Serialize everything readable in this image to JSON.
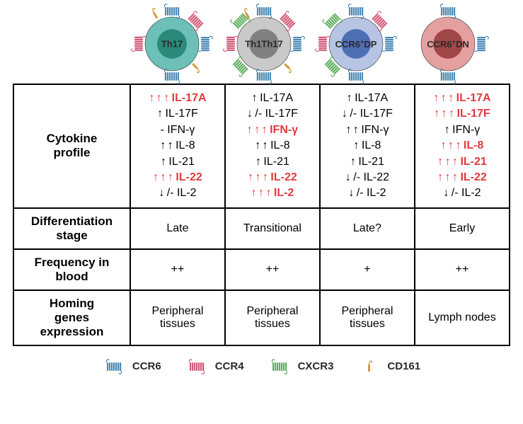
{
  "colors": {
    "ccr6": "#4a88b5",
    "ccr4": "#d15a78",
    "cxcr3": "#5fae5f",
    "cd161": "#d49a3a",
    "highlight": "#e03a3e",
    "text": "#2a2a2a"
  },
  "cells": [
    {
      "id": "th17",
      "label": "Th17",
      "outer_fill": "#6cc0b8",
      "inner_fill": "#2a8a7a",
      "receptors": {
        "ccr6": true,
        "ccr4": true,
        "cxcr3": false,
        "cd161": true
      }
    },
    {
      "id": "th1th17",
      "label": "Th1Th17",
      "outer_fill": "#c9c9c9",
      "inner_fill": "#808080",
      "receptors": {
        "ccr6": true,
        "ccr4": true,
        "cxcr3": true,
        "cd161": true
      }
    },
    {
      "id": "ccr6dp",
      "label_html": "CCR6<sup>+</sup>DP",
      "outer_fill": "#b7c4e4",
      "inner_fill": "#4e6fb3",
      "receptors": {
        "ccr6": true,
        "ccr4": true,
        "cxcr3": true,
        "cd161": false
      }
    },
    {
      "id": "ccr6dn",
      "label_html": "CCR6<sup>+</sup>DN",
      "outer_fill": "#e4a0a0",
      "inner_fill": "#a04848",
      "receptors": {
        "ccr6": true,
        "ccr4": false,
        "cxcr3": false,
        "cd161": false
      }
    }
  ],
  "rows": [
    {
      "header": "Cytokine profile",
      "type": "cytokines",
      "cols": [
        [
          {
            "arrows": "uuu",
            "name": "IL-17A",
            "high": true
          },
          {
            "arrows": "u",
            "name": "IL-17F",
            "high": false
          },
          {
            "arrows": "-",
            "name": "IFN-γ",
            "high": false
          },
          {
            "arrows": "uu",
            "name": "IL-8",
            "high": false
          },
          {
            "arrows": "u",
            "name": "IL-21",
            "high": false
          },
          {
            "arrows": "uuu",
            "name": "IL-22",
            "high": true
          },
          {
            "arrows": "d/-",
            "name": "IL-2",
            "high": false
          }
        ],
        [
          {
            "arrows": "u",
            "name": "IL-17A",
            "high": false
          },
          {
            "arrows": "d/-",
            "name": "IL-17F",
            "high": false
          },
          {
            "arrows": "uuu",
            "name": "IFN-γ",
            "high": true
          },
          {
            "arrows": "uu",
            "name": "IL-8",
            "high": false
          },
          {
            "arrows": "u",
            "name": "IL-21",
            "high": false
          },
          {
            "arrows": "uuu",
            "name": "IL-22",
            "high": true
          },
          {
            "arrows": "uuu",
            "name": "IL-2",
            "high": true
          }
        ],
        [
          {
            "arrows": "u",
            "name": "IL-17A",
            "high": false
          },
          {
            "arrows": "d/-",
            "name": "IL-17F",
            "high": false
          },
          {
            "arrows": "uu",
            "name": "IFN-γ",
            "high": false
          },
          {
            "arrows": "u",
            "name": "IL-8",
            "high": false
          },
          {
            "arrows": "u",
            "name": "IL-21",
            "high": false
          },
          {
            "arrows": "d/-",
            "name": "IL-22",
            "high": false
          },
          {
            "arrows": "d/-",
            "name": "IL-2",
            "high": false
          }
        ],
        [
          {
            "arrows": "uuu",
            "name": "IL-17A",
            "high": true
          },
          {
            "arrows": "uuu",
            "name": "IL-17F",
            "high": true
          },
          {
            "arrows": "u",
            "name": "IFN-γ",
            "high": false
          },
          {
            "arrows": "uuu",
            "name": "IL-8",
            "high": true
          },
          {
            "arrows": "uuu",
            "name": "IL-21",
            "high": true
          },
          {
            "arrows": "uuu",
            "name": "IL-22",
            "high": true
          },
          {
            "arrows": "d/-",
            "name": "IL-2",
            "high": false
          }
        ]
      ]
    },
    {
      "header": "Differentiation stage",
      "type": "text",
      "cols": [
        "Late",
        "Transitional",
        "Late?",
        "Early"
      ]
    },
    {
      "header": "Frequency in blood",
      "type": "text",
      "cols": [
        "++",
        "++",
        "+",
        "++"
      ]
    },
    {
      "header": "Homing genes expression",
      "type": "text",
      "cols": [
        "Peripheral tissues",
        "Peripheral tissues",
        "Peripheral tissues",
        "Lymph nodes"
      ]
    }
  ],
  "legend": [
    {
      "id": "ccr6",
      "label": "CCR6",
      "color": "#4a88b5"
    },
    {
      "id": "ccr4",
      "label": "CCR4",
      "color": "#d15a78"
    },
    {
      "id": "cxcr3",
      "label": "CXCR3",
      "color": "#5fae5f"
    },
    {
      "id": "cd161",
      "label": "CD161",
      "color": "#d49a3a"
    }
  ]
}
